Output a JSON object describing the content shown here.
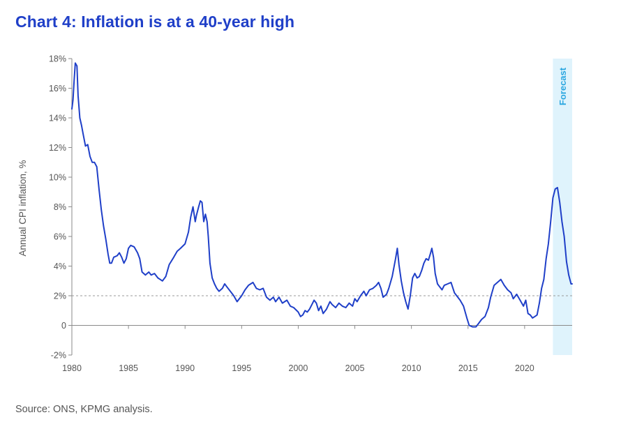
{
  "title": "Chart 4: Inflation is at a 40-year high",
  "source": "Source: ONS, KPMG analysis.",
  "colors": {
    "title": "#1f3fc8",
    "line": "#1f3fc8",
    "forecast_band": "#dff3fc",
    "forecast_text": "#29a6e0",
    "reference_line": "#999999",
    "text": "#555555"
  },
  "chart_data": {
    "type": "line",
    "title": "Chart 4: Inflation is at a 40-year high",
    "ylabel": "Annual CPI inflation, %",
    "xlabel": "",
    "xlim": [
      1980,
      2024.2
    ],
    "ylim": [
      -2,
      18
    ],
    "x_ticks": [
      1980,
      1985,
      1990,
      1995,
      2000,
      2005,
      2010,
      2015,
      2020
    ],
    "x_tick_labels": [
      "1980",
      "1985",
      "1990",
      "1995",
      "2000",
      "2005",
      "2010",
      "2015",
      "2020"
    ],
    "y_ticks": [
      -2,
      0,
      2,
      4,
      6,
      8,
      10,
      12,
      14,
      16,
      18
    ],
    "y_tick_labels": [
      "-2%",
      "0",
      "2%",
      "4%",
      "6%",
      "8%",
      "10%",
      "12%",
      "14%",
      "16%",
      "18%"
    ],
    "reference_line": {
      "y": 2,
      "style": "dashed"
    },
    "forecast_band": {
      "x_start": 2022.5,
      "x_end": 2024.2,
      "label": "Forecast"
    },
    "grid": false,
    "series": [
      {
        "points": [
          [
            1980.0,
            14.6
          ],
          [
            1980.1,
            15.2
          ],
          [
            1980.2,
            16.5
          ],
          [
            1980.3,
            17.7
          ],
          [
            1980.45,
            17.5
          ],
          [
            1980.55,
            15.5
          ],
          [
            1980.7,
            14.0
          ],
          [
            1980.85,
            13.5
          ],
          [
            1981.0,
            12.9
          ],
          [
            1981.2,
            12.1
          ],
          [
            1981.4,
            12.2
          ],
          [
            1981.6,
            11.4
          ],
          [
            1981.8,
            11.0
          ],
          [
            1982.0,
            11.0
          ],
          [
            1982.2,
            10.7
          ],
          [
            1982.4,
            9.2
          ],
          [
            1982.6,
            7.8
          ],
          [
            1982.8,
            6.7
          ],
          [
            1983.0,
            5.8
          ],
          [
            1983.2,
            4.8
          ],
          [
            1983.35,
            4.2
          ],
          [
            1983.5,
            4.2
          ],
          [
            1983.7,
            4.6
          ],
          [
            1984.0,
            4.7
          ],
          [
            1984.2,
            4.9
          ],
          [
            1984.4,
            4.6
          ],
          [
            1984.6,
            4.2
          ],
          [
            1984.8,
            4.5
          ],
          [
            1985.0,
            5.2
          ],
          [
            1985.2,
            5.4
          ],
          [
            1985.5,
            5.3
          ],
          [
            1985.8,
            4.9
          ],
          [
            1986.0,
            4.5
          ],
          [
            1986.2,
            3.6
          ],
          [
            1986.5,
            3.4
          ],
          [
            1986.8,
            3.6
          ],
          [
            1987.0,
            3.4
          ],
          [
            1987.3,
            3.5
          ],
          [
            1987.6,
            3.2
          ],
          [
            1987.8,
            3.1
          ],
          [
            1988.0,
            3.0
          ],
          [
            1988.3,
            3.3
          ],
          [
            1988.6,
            4.1
          ],
          [
            1989.0,
            4.6
          ],
          [
            1989.3,
            5.0
          ],
          [
            1989.6,
            5.2
          ],
          [
            1990.0,
            5.5
          ],
          [
            1990.3,
            6.3
          ],
          [
            1990.5,
            7.3
          ],
          [
            1990.7,
            8.0
          ],
          [
            1990.9,
            7.0
          ],
          [
            1991.0,
            7.4
          ],
          [
            1991.2,
            8.0
          ],
          [
            1991.35,
            8.4
          ],
          [
            1991.5,
            8.3
          ],
          [
            1991.65,
            7.0
          ],
          [
            1991.8,
            7.5
          ],
          [
            1991.95,
            7.0
          ],
          [
            1992.05,
            6.0
          ],
          [
            1992.2,
            4.2
          ],
          [
            1992.4,
            3.2
          ],
          [
            1992.6,
            2.8
          ],
          [
            1992.8,
            2.5
          ],
          [
            1993.0,
            2.3
          ],
          [
            1993.3,
            2.5
          ],
          [
            1993.5,
            2.8
          ],
          [
            1993.7,
            2.6
          ],
          [
            1994.0,
            2.3
          ],
          [
            1994.3,
            2.0
          ],
          [
            1994.6,
            1.6
          ],
          [
            1995.0,
            2.0
          ],
          [
            1995.3,
            2.4
          ],
          [
            1995.6,
            2.7
          ],
          [
            1995.8,
            2.8
          ],
          [
            1996.0,
            2.9
          ],
          [
            1996.3,
            2.5
          ],
          [
            1996.6,
            2.4
          ],
          [
            1996.9,
            2.5
          ],
          [
            1997.2,
            1.9
          ],
          [
            1997.5,
            1.7
          ],
          [
            1997.8,
            1.9
          ],
          [
            1998.0,
            1.6
          ],
          [
            1998.3,
            1.9
          ],
          [
            1998.6,
            1.5
          ],
          [
            1999.0,
            1.7
          ],
          [
            1999.3,
            1.3
          ],
          [
            1999.6,
            1.2
          ],
          [
            2000.0,
            0.9
          ],
          [
            2000.2,
            0.6
          ],
          [
            2000.4,
            0.7
          ],
          [
            2000.6,
            1.0
          ],
          [
            2000.8,
            0.9
          ],
          [
            2001.0,
            1.1
          ],
          [
            2001.2,
            1.4
          ],
          [
            2001.4,
            1.7
          ],
          [
            2001.6,
            1.5
          ],
          [
            2001.8,
            1.0
          ],
          [
            2002.0,
            1.3
          ],
          [
            2002.2,
            0.8
          ],
          [
            2002.5,
            1.1
          ],
          [
            2002.8,
            1.6
          ],
          [
            2003.0,
            1.4
          ],
          [
            2003.3,
            1.2
          ],
          [
            2003.6,
            1.5
          ],
          [
            2003.9,
            1.3
          ],
          [
            2004.2,
            1.2
          ],
          [
            2004.5,
            1.5
          ],
          [
            2004.8,
            1.3
          ],
          [
            2005.0,
            1.8
          ],
          [
            2005.2,
            1.6
          ],
          [
            2005.5,
            2.0
          ],
          [
            2005.8,
            2.3
          ],
          [
            2006.0,
            2.0
          ],
          [
            2006.3,
            2.4
          ],
          [
            2006.6,
            2.5
          ],
          [
            2006.9,
            2.7
          ],
          [
            2007.1,
            2.9
          ],
          [
            2007.3,
            2.5
          ],
          [
            2007.5,
            1.9
          ],
          [
            2007.8,
            2.1
          ],
          [
            2008.0,
            2.5
          ],
          [
            2008.3,
            3.3
          ],
          [
            2008.6,
            4.5
          ],
          [
            2008.75,
            5.2
          ],
          [
            2008.9,
            4.1
          ],
          [
            2009.1,
            3.0
          ],
          [
            2009.3,
            2.2
          ],
          [
            2009.5,
            1.6
          ],
          [
            2009.7,
            1.1
          ],
          [
            2009.9,
            2.0
          ],
          [
            2010.1,
            3.2
          ],
          [
            2010.3,
            3.5
          ],
          [
            2010.5,
            3.2
          ],
          [
            2010.7,
            3.3
          ],
          [
            2010.9,
            3.7
          ],
          [
            2011.1,
            4.2
          ],
          [
            2011.3,
            4.5
          ],
          [
            2011.5,
            4.4
          ],
          [
            2011.7,
            4.9
          ],
          [
            2011.8,
            5.2
          ],
          [
            2011.95,
            4.6
          ],
          [
            2012.1,
            3.5
          ],
          [
            2012.3,
            2.8
          ],
          [
            2012.5,
            2.6
          ],
          [
            2012.7,
            2.4
          ],
          [
            2012.9,
            2.7
          ],
          [
            2013.2,
            2.8
          ],
          [
            2013.5,
            2.9
          ],
          [
            2013.8,
            2.2
          ],
          [
            2014.0,
            2.0
          ],
          [
            2014.3,
            1.7
          ],
          [
            2014.6,
            1.3
          ],
          [
            2014.9,
            0.5
          ],
          [
            2015.1,
            0.0
          ],
          [
            2015.4,
            -0.1
          ],
          [
            2015.7,
            -0.1
          ],
          [
            2015.9,
            0.1
          ],
          [
            2016.2,
            0.4
          ],
          [
            2016.5,
            0.6
          ],
          [
            2016.8,
            1.2
          ],
          [
            2017.0,
            1.9
          ],
          [
            2017.3,
            2.7
          ],
          [
            2017.6,
            2.9
          ],
          [
            2017.9,
            3.1
          ],
          [
            2018.2,
            2.7
          ],
          [
            2018.5,
            2.4
          ],
          [
            2018.8,
            2.2
          ],
          [
            2019.0,
            1.8
          ],
          [
            2019.3,
            2.1
          ],
          [
            2019.6,
            1.7
          ],
          [
            2019.9,
            1.3
          ],
          [
            2020.1,
            1.7
          ],
          [
            2020.3,
            0.8
          ],
          [
            2020.5,
            0.7
          ],
          [
            2020.7,
            0.5
          ],
          [
            2020.9,
            0.6
          ],
          [
            2021.1,
            0.7
          ],
          [
            2021.3,
            1.5
          ],
          [
            2021.5,
            2.5
          ],
          [
            2021.7,
            3.1
          ],
          [
            2021.9,
            4.5
          ],
          [
            2022.1,
            5.5
          ],
          [
            2022.3,
            7.0
          ],
          [
            2022.5,
            8.6
          ],
          [
            2022.7,
            9.2
          ],
          [
            2022.9,
            9.3
          ],
          [
            2023.1,
            8.3
          ],
          [
            2023.3,
            7.0
          ],
          [
            2023.5,
            6.0
          ],
          [
            2023.7,
            4.3
          ],
          [
            2023.9,
            3.4
          ],
          [
            2024.1,
            2.8
          ],
          [
            2024.2,
            2.8
          ]
        ]
      }
    ]
  }
}
